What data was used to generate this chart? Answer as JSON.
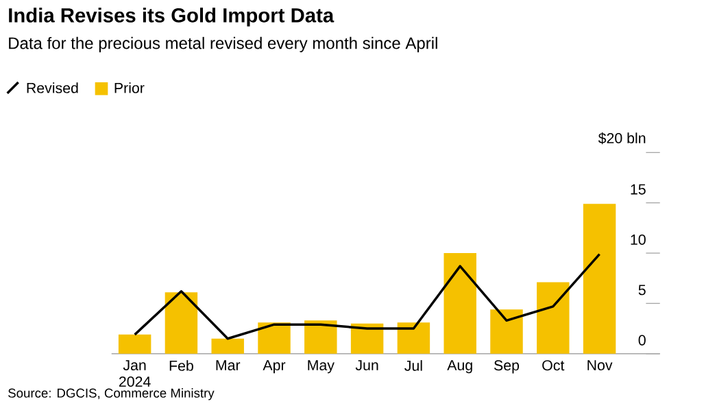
{
  "chart_data": {
    "type": "bar",
    "title": "India Revises its Gold Import Data",
    "subtitle": "Data for the precious metal revised every month since April",
    "categories": [
      "Jan 2024",
      "Feb",
      "Mar",
      "Apr",
      "May",
      "Jun",
      "Jul",
      "Aug",
      "Sep",
      "Oct",
      "Nov"
    ],
    "series": [
      {
        "name": "Revised",
        "type": "line",
        "color": "#000000",
        "values": [
          1.9,
          6.2,
          1.5,
          2.9,
          2.9,
          2.5,
          2.5,
          8.7,
          3.3,
          4.7,
          9.9
        ]
      },
      {
        "name": "Prior",
        "color": "#f5c100",
        "values": [
          1.9,
          6.1,
          1.5,
          3.1,
          3.3,
          3.0,
          3.1,
          10.0,
          4.4,
          7.1,
          14.9
        ]
      }
    ],
    "ylim": [
      0,
      20
    ],
    "yticks": [
      0,
      5,
      10,
      15,
      {
        "value": 20,
        "label": "$20 bln"
      }
    ],
    "legend": "top left",
    "marker": "none",
    "annotations": [
      "Source: DGCIS, Commerce Ministry"
    ]
  }
}
